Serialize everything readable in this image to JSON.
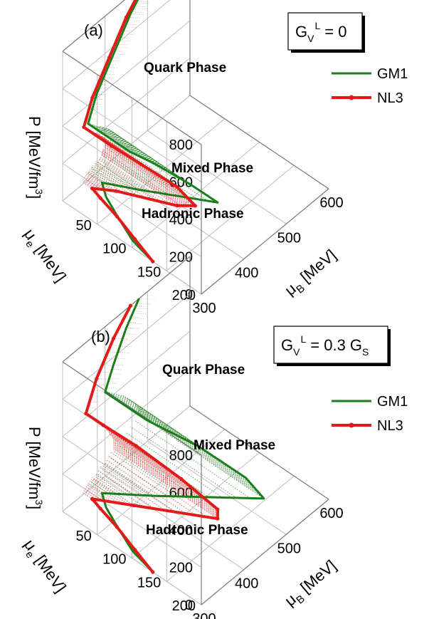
{
  "chart_data": [
    {
      "type": "3d-line",
      "panel_label": "(a)",
      "annotation": {
        "main": "G",
        "sub": "V",
        "sup": "L",
        "rest": "= 0"
      },
      "zlabel": {
        "main": "P [MeV/fm",
        "sup": "3",
        "close": "]"
      },
      "xlabel": {
        "main": "μ",
        "sub": "B",
        "rest": " [MeV]"
      },
      "ylabel": {
        "main": "μ",
        "sub": "e",
        "rest": " [MeV]"
      },
      "z_ticks": [
        "0",
        "200",
        "400",
        "600",
        "800"
      ],
      "x_ticks": [
        "300",
        "400",
        "500",
        "600"
      ],
      "y_ticks": [
        "50",
        "100",
        "150",
        "200"
      ],
      "xlim": [
        300,
        600
      ],
      "ylim": [
        0,
        200
      ],
      "zlim": [
        0,
        800
      ],
      "phases": [
        "Quark Phase",
        "Mixed Phase",
        "Hadronic Phase"
      ],
      "series": [
        {
          "name": "GM1",
          "color": "#1a7f1a",
          "hadronic": [
            [
              300,
              130,
              0
            ],
            [
              310,
              95,
              5
            ],
            [
              330,
              60,
              15
            ],
            [
              345,
              35,
              25
            ],
            [
              360,
              20,
              35
            ]
          ],
          "mixed_boundary": [
            [
              360,
              20,
              35
            ],
            [
              380,
              60,
              60
            ],
            [
              420,
              150,
              140
            ],
            [
              405,
              120,
              190
            ],
            [
              385,
              80,
              240
            ],
            [
              360,
              60,
              300
            ]
          ],
          "quark": [
            [
              360,
              0,
              300
            ],
            [
              380,
              0,
              420
            ],
            [
              420,
              0,
              560
            ],
            [
              460,
              0,
              700
            ],
            [
              500,
              0,
              800
            ]
          ]
        },
        {
          "name": "NL3",
          "color": "#e31a1a",
          "hadronic": [
            [
              300,
              130,
              0
            ],
            [
              315,
              95,
              4
            ],
            [
              330,
              60,
              10
            ],
            [
              340,
              30,
              15
            ],
            [
              345,
              15,
              20
            ]
          ],
          "mixed_boundary": [
            [
              345,
              15,
              20
            ],
            [
              360,
              40,
              40
            ],
            [
              390,
              110,
              80
            ],
            [
              400,
              130,
              110
            ],
            [
              390,
              110,
              180
            ],
            [
              370,
              70,
              240
            ],
            [
              350,
              40,
              300
            ]
          ],
          "quark": [
            [
              350,
              0,
              300
            ],
            [
              370,
              0,
              420
            ],
            [
              410,
              0,
              560
            ],
            [
              450,
              0,
              700
            ],
            [
              490,
              0,
              800
            ]
          ]
        }
      ]
    },
    {
      "type": "3d-line",
      "panel_label": "(b)",
      "annotation": {
        "main": "G",
        "sub": "V",
        "sup": "L",
        "rest": "= 0.3 G",
        "tail_sub": "S"
      },
      "zlabel": {
        "main": "P [MeV/fm",
        "sup": "3",
        "close": "]"
      },
      "xlabel": {
        "main": "μ",
        "sub": "B",
        "rest": " [MeV]"
      },
      "ylabel": {
        "main": "μ",
        "sub": "e",
        "rest": " [MeV]"
      },
      "z_ticks": [
        "0",
        "200",
        "400",
        "600",
        "800"
      ],
      "x_ticks": [
        "300",
        "400",
        "500",
        "600"
      ],
      "y_ticks": [
        "50",
        "100",
        "150",
        "200"
      ],
      "xlim": [
        300,
        600
      ],
      "ylim": [
        0,
        200
      ],
      "zlim": [
        0,
        800
      ],
      "phases": [
        "Quark Phase",
        "Mixed Phase",
        "Hadronic Phase"
      ],
      "series": [
        {
          "name": "GM1",
          "color": "#1a7f1a",
          "hadronic": [
            [
              300,
              130,
              0
            ],
            [
              310,
              95,
              5
            ],
            [
              330,
              60,
              15
            ],
            [
              345,
              35,
              25
            ],
            [
              360,
              20,
              35
            ]
          ],
          "mixed_boundary": [
            [
              360,
              20,
              35
            ],
            [
              400,
              70,
              70
            ],
            [
              480,
              180,
              180
            ],
            [
              470,
              160,
              260
            ],
            [
              440,
              110,
              360
            ],
            [
              400,
              60,
              450
            ]
          ],
          "quark": [
            [
              400,
              0,
              450
            ],
            [
              420,
              0,
              560
            ],
            [
              450,
              0,
              700
            ],
            [
              480,
              0,
              800
            ]
          ]
        },
        {
          "name": "NL3",
          "color": "#e31a1a",
          "hadronic": [
            [
              300,
              130,
              0
            ],
            [
              315,
              95,
              4
            ],
            [
              330,
              60,
              10
            ],
            [
              340,
              30,
              15
            ],
            [
              345,
              15,
              20
            ]
          ],
          "mixed_boundary": [
            [
              345,
              15,
              20
            ],
            [
              370,
              60,
              50
            ],
            [
              420,
              150,
              110
            ],
            [
              420,
              150,
              160
            ],
            [
              400,
              110,
              260
            ],
            [
              375,
              60,
              360
            ],
            [
              355,
              25,
              420
            ]
          ],
          "quark": [
            [
              355,
              0,
              420
            ],
            [
              380,
              0,
              560
            ],
            [
              420,
              0,
              700
            ],
            [
              460,
              0,
              800
            ]
          ]
        }
      ]
    }
  ]
}
